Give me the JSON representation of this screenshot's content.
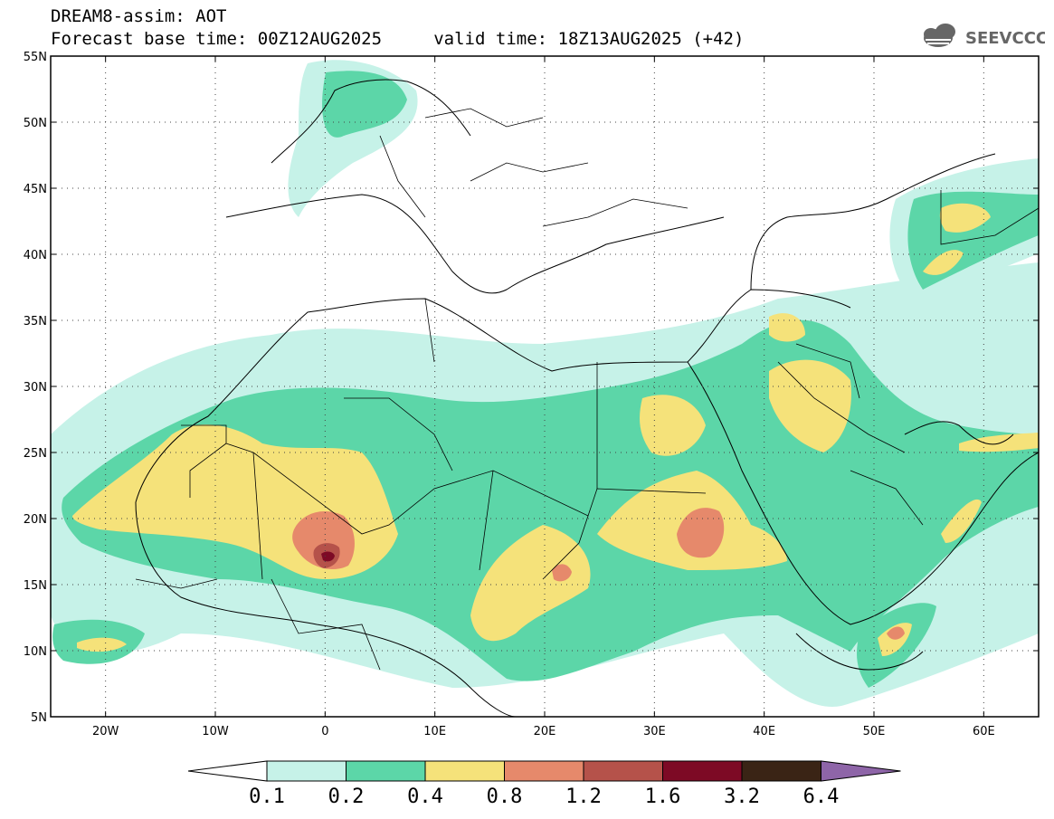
{
  "header": {
    "line1": "DREAM8-assim: AOT",
    "line2": "Forecast base time: 00Z12AUG2025     valid time: 18Z13AUG2025 (+42)"
  },
  "logo": {
    "text": "SEEVCCC",
    "icon": "cloud-icon"
  },
  "map": {
    "lon_range": [
      -25,
      65
    ],
    "lat_range": [
      5,
      55
    ],
    "lat_labels": [
      "55N",
      "50N",
      "45N",
      "40N",
      "35N",
      "30N",
      "25N",
      "20N",
      "15N",
      "10N",
      "5N"
    ],
    "lon_labels": [
      "20W",
      "10W",
      "0",
      "10E",
      "20E",
      "30E",
      "40E",
      "50E",
      "60E"
    ]
  },
  "legend": {
    "labels": [
      "0.1",
      "0.2",
      "0.4",
      "0.8",
      "1.2",
      "1.6",
      "3.2",
      "6.4"
    ],
    "colors": [
      "#ffffff",
      "#c6f2e8",
      "#5cd6a8",
      "#f5e27a",
      "#e6896b",
      "#b5524a",
      "#7d0a25",
      "#3a2415",
      "#8e65a8"
    ]
  }
}
